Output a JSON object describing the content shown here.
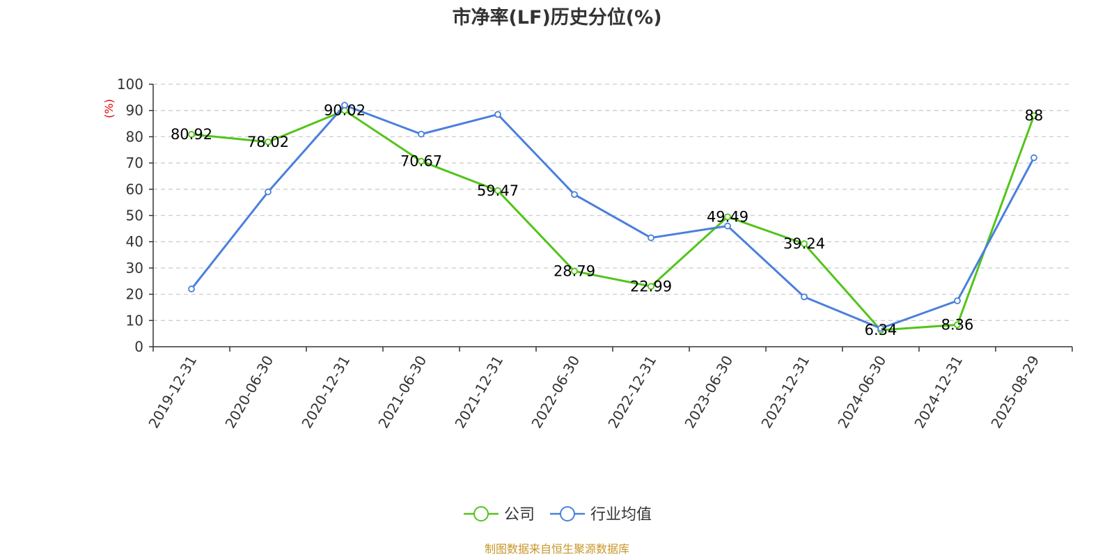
{
  "chart_data": {
    "type": "line",
    "title": "市净率(LF)历史分位(%)",
    "ylabel": "(%)",
    "ylim": [
      0,
      100
    ],
    "yticks": [
      0,
      10,
      20,
      30,
      40,
      50,
      60,
      70,
      80,
      90,
      100
    ],
    "grid": true,
    "legend_position": "bottom",
    "categories": [
      "2019-12-31",
      "2020-06-30",
      "2020-12-31",
      "2021-06-30",
      "2021-12-31",
      "2022-06-30",
      "2022-12-31",
      "2023-06-30",
      "2023-12-31",
      "2024-06-30",
      "2024-12-31",
      "2025-08-29"
    ],
    "series": [
      {
        "name": "公司",
        "color": "#52c41a",
        "show_labels": true,
        "values": [
          80.92,
          78.02,
          90.02,
          70.67,
          59.47,
          28.79,
          22.99,
          49.49,
          39.24,
          6.34,
          8.36,
          88
        ]
      },
      {
        "name": "行业均值",
        "color": "#4a7fdc",
        "show_labels": false,
        "values": [
          22,
          59,
          92,
          81,
          88.5,
          58,
          41.5,
          46,
          19,
          7,
          17.5,
          72
        ]
      }
    ]
  },
  "source_text": "制图数据来自恒生聚源数据库",
  "colors": {
    "axis": "#333333",
    "grid": "#cccccc",
    "unit": "#e00000",
    "source": "#c8962a"
  }
}
